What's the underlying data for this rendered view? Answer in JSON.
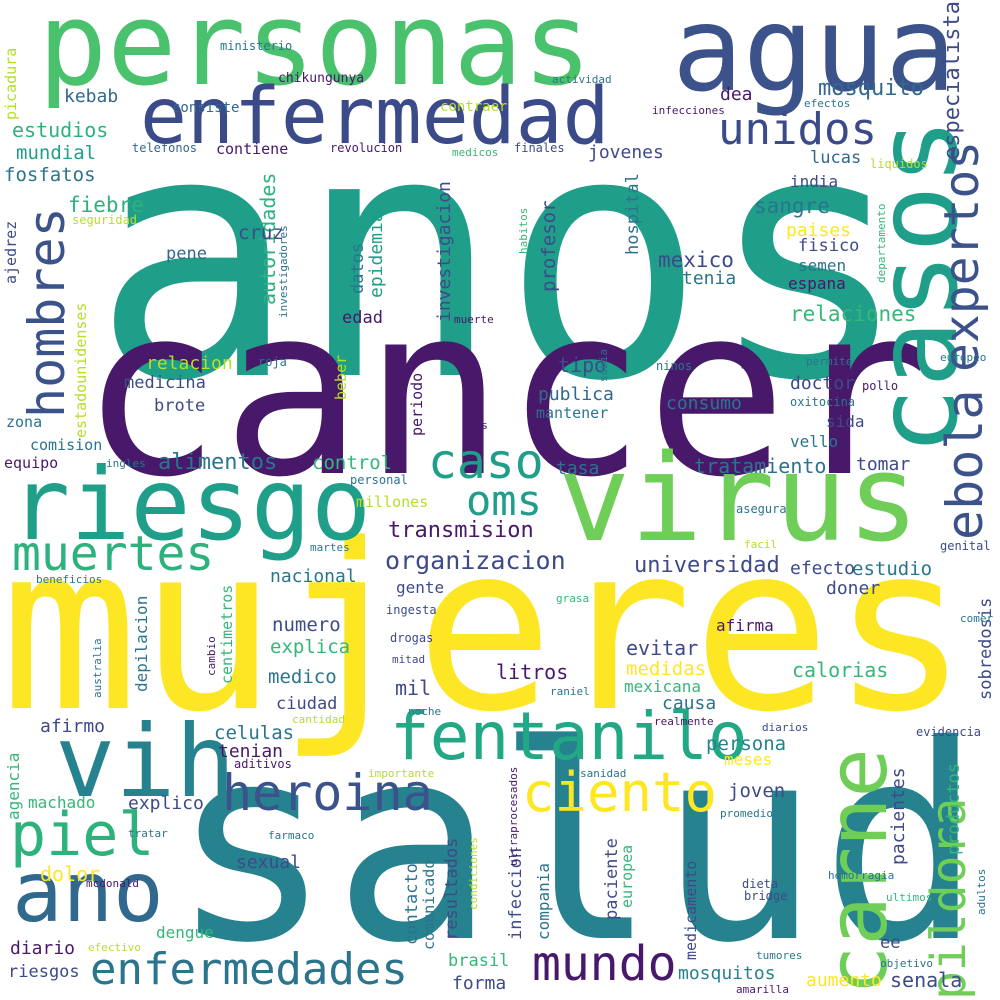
{
  "palette": {
    "viridis_dark": "#48186a",
    "indigo": "#3e4a89",
    "blue": "#31688e",
    "teal": "#26828e",
    "green": "#1f9e89",
    "mint": "#35b779",
    "lime": "#6ece58",
    "yellow": "#fde725"
  },
  "words": [
    "anos",
    "cancer",
    "mujeres",
    "salud",
    "personas",
    "agua",
    "virus",
    "casos",
    "riesgo",
    "enfermedad",
    "carne",
    "vih",
    "fentanilo",
    "ano",
    "heroina",
    "caso",
    "ciento",
    "hombres",
    "unidos",
    "ebola",
    "expertos",
    "piel",
    "muertes",
    "enfermedades",
    "mundo",
    "oms",
    "pildora",
    "organizacion",
    "transmision",
    "universidad",
    "mosquito",
    "especialista",
    "tratamiento",
    "alimentos",
    "relaciones",
    "sangre",
    "fiebre",
    "mexico",
    "autoridades",
    "epidemia",
    "investigacion",
    "profesor",
    "hospital",
    "dea",
    "lucas",
    "india",
    "kebab",
    "estudios",
    "mundial",
    "fosfatos",
    "consiste",
    "contiene",
    "contraer",
    "jovenes",
    "cruz",
    "pene",
    "ajedrez",
    "datos",
    "edad",
    "relacion",
    "medicina",
    "brote",
    "tipo",
    "publica",
    "consumo",
    "mantener",
    "doctor",
    "sida",
    "vello",
    "control",
    "tasa",
    "tomar",
    "millones",
    "nacional",
    "gente",
    "numero",
    "explica",
    "medico",
    "mil",
    "ciudad",
    "celulas",
    "tenian",
    "litros",
    "evitar",
    "medidas",
    "mexicana",
    "causa",
    "persona",
    "meses",
    "joven",
    "explico",
    "sexual",
    "dolor",
    "diario",
    "riesgos",
    "forma",
    "brasil",
    "senala",
    "aumento",
    "mosquitos",
    "calorias",
    "sobredosis",
    "estudio",
    "efecto",
    "doner",
    "afirma",
    "afirmo",
    "machado",
    "agencia",
    "comision",
    "equipo",
    "zona",
    "paciente",
    "pacientes",
    "productos",
    "dengue",
    "comunicado",
    "contacto",
    "resultados",
    "infeccion",
    "compania",
    "europea",
    "medicamento",
    "ee",
    "semen",
    "fisico",
    "espana",
    "tenia",
    "paises",
    "chikungunya",
    "ministerio",
    "actividad",
    "infecciones",
    "efectos",
    "telefonos",
    "revolucion",
    "medicos",
    "finales",
    "liquidos",
    "seguridad",
    "investigadores",
    "habitos",
    "departamento",
    "muerte",
    "sabia",
    "ninos",
    "permite",
    "europeo",
    "oxitocina",
    "pollo",
    "roja",
    "beber",
    "periodo",
    "uu",
    "mes",
    "ingles",
    "personal",
    "asegura",
    "facil",
    "genital",
    "martes",
    "beneficios",
    "ingesta",
    "grasa",
    "comer",
    "drogas",
    "mitad",
    "cambio",
    "australia",
    "raniel",
    "cantidad",
    "noche",
    "realmente",
    "diarios",
    "evidencia",
    "aditivos",
    "importante",
    "sanidad",
    "promedio",
    "tratar",
    "farmaco",
    "mcdonald",
    "dieta",
    "bridge",
    "hemorragia",
    "adultos",
    "ultimos",
    "condiciones",
    "ultraprocesados",
    "efectivo",
    "tumores",
    "objetivo",
    "amarilla",
    "estadounidenses",
    "depilacion",
    "centimetros",
    "picadura"
  ]
}
